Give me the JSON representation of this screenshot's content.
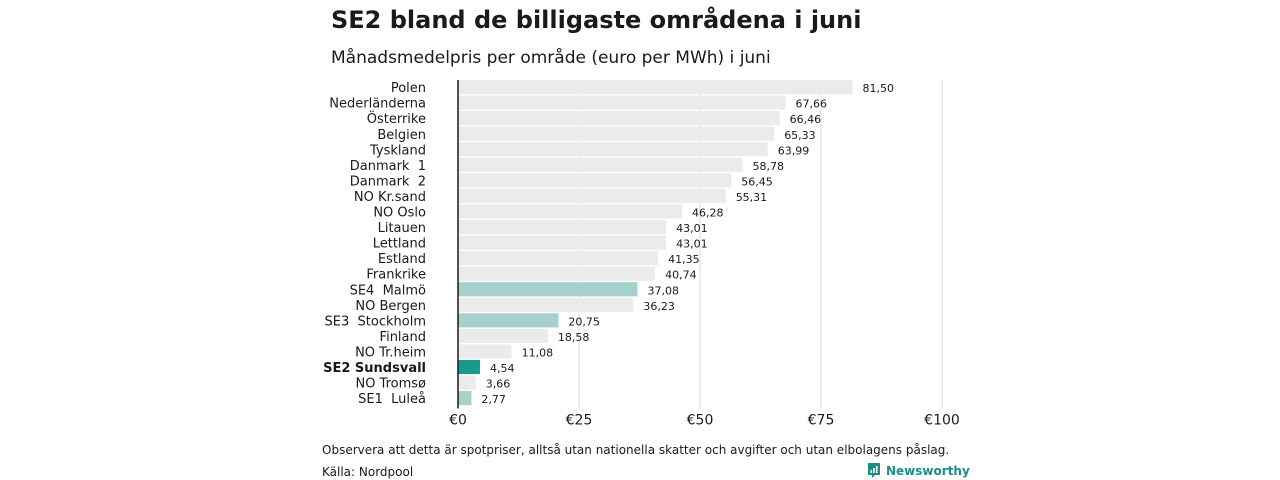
{
  "header": {
    "title": "SE2 bland de billigaste områdena i juni",
    "subtitle": "Månadsmedelpris per område (euro per MWh) i juni"
  },
  "footer": {
    "note": "Observera att detta är spotpriser, alltså utan nationella skatter och avgifter och utan elbolagens påslag.",
    "source": "Källa: Nordpool",
    "brand": "Newsworthy"
  },
  "colors": {
    "default_bar": "#ebebeb",
    "se_bar": "#a6d1cb",
    "highlight_bar": "#1a9a8e",
    "gridline": "#d9d9d9",
    "axis": "#1a1a1a",
    "brand": "#1a8f86"
  },
  "chart_data": {
    "type": "bar",
    "orientation": "horizontal",
    "title": "SE2 bland de billigaste områdena i juni",
    "subtitle": "Månadsmedelpris per område (euro per MWh) i juni",
    "xlim": [
      0,
      100
    ],
    "xticks": [
      0,
      25,
      50,
      75,
      100
    ],
    "xtick_labels": [
      "€0",
      "€25",
      "€50",
      "€75",
      "€100"
    ],
    "grid": true,
    "categories": [
      "Polen",
      "Nederländerna",
      "Österrike",
      "Belgien",
      "Tyskland",
      "Danmark  1",
      "Danmark  2",
      "NO Kr.sand",
      "NO Oslo",
      "Litauen",
      "Lettland",
      "Estland",
      "Frankrike",
      "SE4  Malmö",
      "NO Bergen",
      "SE3  Stockholm",
      "Finland",
      "NO Tr.heim",
      "SE2 Sundsvall",
      "NO Tromsø",
      "SE1  Luleå"
    ],
    "values": [
      81.5,
      67.66,
      66.46,
      65.33,
      63.99,
      58.78,
      56.45,
      55.31,
      46.28,
      43.01,
      43.01,
      41.35,
      40.74,
      37.08,
      36.23,
      20.75,
      18.58,
      11.08,
      4.54,
      3.66,
      2.77
    ],
    "value_labels": [
      "81,50",
      "67,66",
      "66,46",
      "65,33",
      "63,99",
      "58,78",
      "56,45",
      "55,31",
      "46,28",
      "43,01",
      "43,01",
      "41,35",
      "40,74",
      "37,08",
      "36,23",
      "20,75",
      "18,58",
      "11,08",
      "4,54",
      "3,66",
      "2,77"
    ],
    "bar_color_groups": [
      "default",
      "default",
      "default",
      "default",
      "default",
      "default",
      "default",
      "default",
      "default",
      "default",
      "default",
      "default",
      "default",
      "se",
      "default",
      "se",
      "default",
      "default",
      "highlight",
      "default",
      "se"
    ],
    "bold_labels": [
      "SE2 Sundsvall"
    ]
  }
}
